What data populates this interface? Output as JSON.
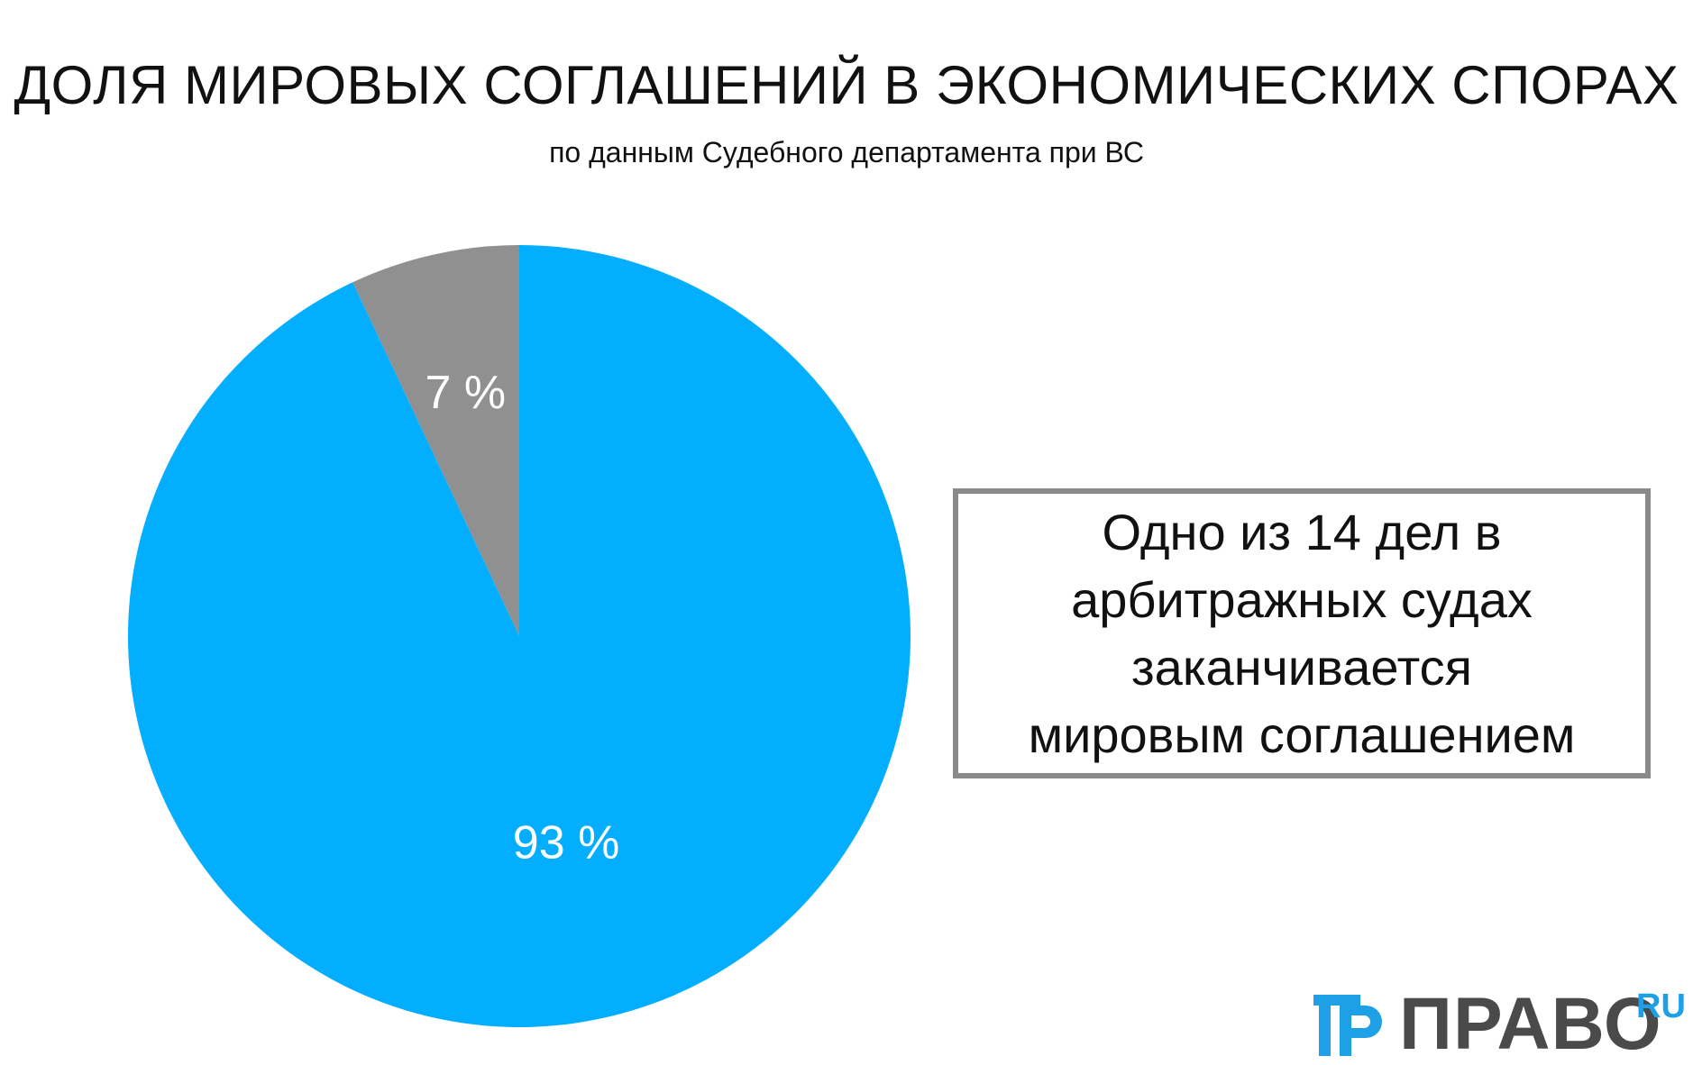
{
  "chart_data": {
    "type": "pie",
    "title": "ДОЛЯ МИРОВЫХ СОГЛАШЕНИЙ В ЭКОНОМИЧЕСКИХ СПОРАХ",
    "subtitle": "по данным Судебного департамента при ВС",
    "slices": [
      {
        "value": 7,
        "label": "7 %",
        "color": "#909090"
      },
      {
        "value": 93,
        "label": "93 %",
        "color": "#03aefe"
      }
    ],
    "start": "12 o'clock",
    "direction": "counter-clockwise for the 7 % slice",
    "legend": "none"
  },
  "callout": {
    "lines": [
      "Одно из 14 дел в",
      "арбитражных судах",
      "заканчивается",
      "мировым соглашением"
    ]
  },
  "logo": {
    "name": "ПРАВО",
    "suffix": "RU",
    "mark_color": "#1ea0e6",
    "text_color": "#4a4a4a"
  }
}
